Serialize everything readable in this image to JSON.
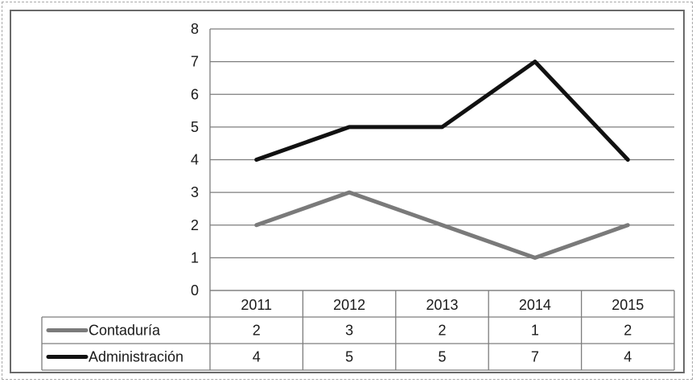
{
  "chart_data": {
    "type": "line",
    "categories": [
      "2011",
      "2012",
      "2013",
      "2014",
      "2015"
    ],
    "ylim": [
      0,
      8
    ],
    "yticks": [
      "0",
      "1",
      "2",
      "3",
      "4",
      "5",
      "6",
      "7",
      "8"
    ],
    "grid": true,
    "legend": "data table below chart",
    "series": [
      {
        "name": "Contaduría",
        "values": [
          2,
          3,
          2,
          1,
          2
        ],
        "color": "#7a7a7a"
      },
      {
        "name": "Administración",
        "values": [
          4,
          5,
          5,
          7,
          4
        ],
        "color": "#111111"
      }
    ]
  }
}
